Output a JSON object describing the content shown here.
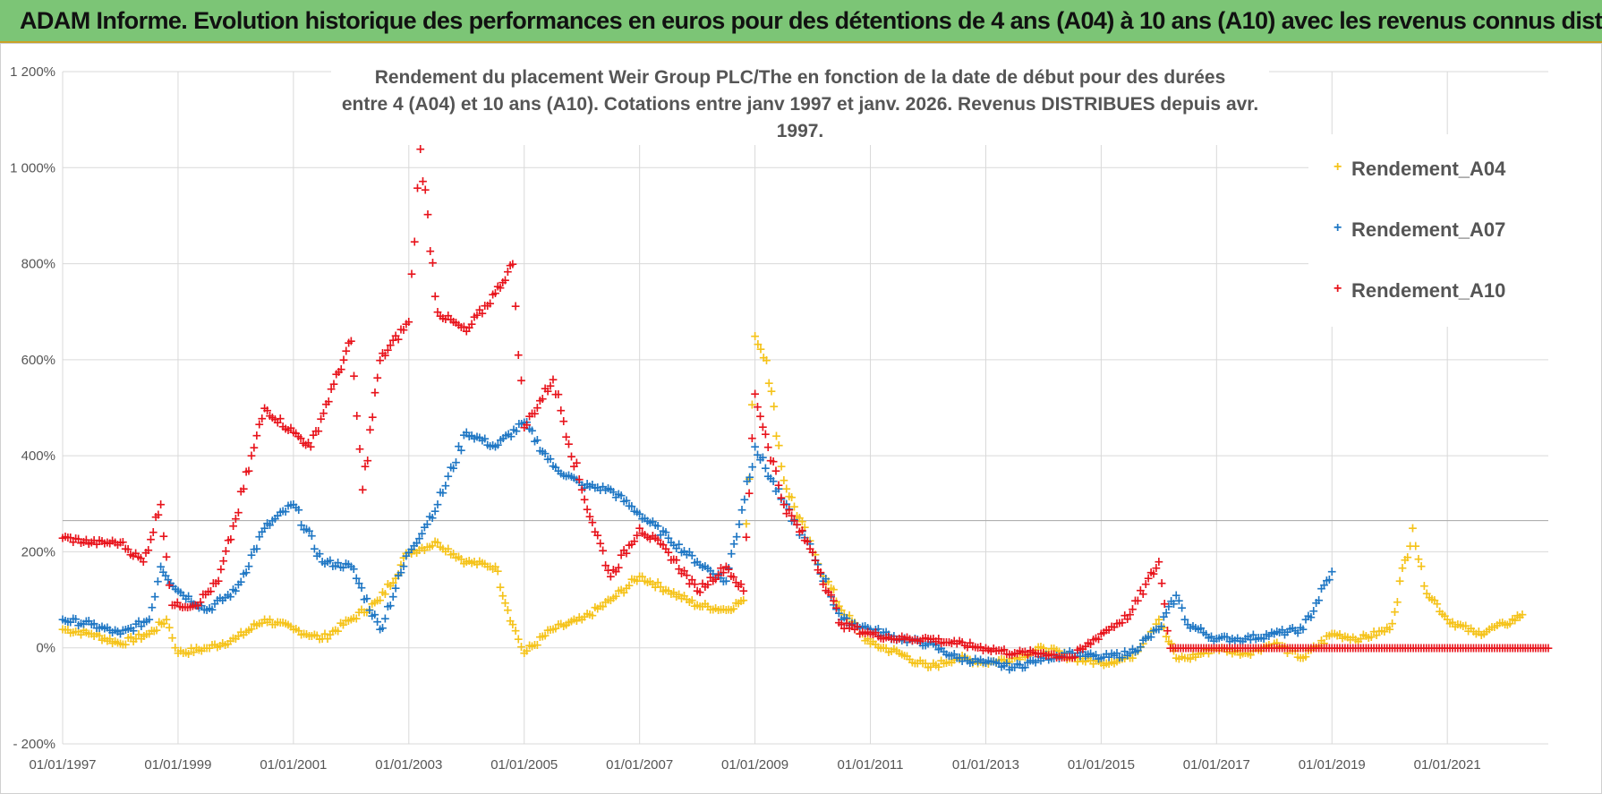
{
  "banner": {
    "text": "ADAM Informe. Evolution historique des performances en euros pour des détentions de 4 ans (A04) à 10 ans (A10) avec les revenus connus distribués"
  },
  "colors": {
    "banner_bg": "#7cc576",
    "A04": "#f5c31a",
    "A07": "#1f77c4",
    "A10": "#e8141c"
  },
  "chart_data": {
    "type": "scatter",
    "title_line1": "Rendement du placement Weir Group PLC/The en fonction de la date de début pour des durées",
    "title_line2": "entre 4 (A04) et 10 ans (A10). Cotations entre janv 1997 et janv. 2026. Revenus DISTRIBUES depuis avr. 1997.",
    "x_range": [
      1997.0,
      2022.75
    ],
    "ylim": [
      -200,
      1200
    ],
    "y_ticks": [
      {
        "value": -200,
        "label": "- 200%"
      },
      {
        "value": 0,
        "label": "0%"
      },
      {
        "value": 200,
        "label": "200%"
      },
      {
        "value": 400,
        "label": "400%"
      },
      {
        "value": 600,
        "label": "600%"
      },
      {
        "value": 800,
        "label": "800%"
      },
      {
        "value": 1000,
        "label": "1 000%"
      },
      {
        "value": 1200,
        "label": "1 200%"
      }
    ],
    "x_ticks": [
      {
        "value": 1997,
        "label": "01/01/1997"
      },
      {
        "value": 1999,
        "label": "01/01/1999"
      },
      {
        "value": 2001,
        "label": "01/01/2001"
      },
      {
        "value": 2003,
        "label": "01/01/2003"
      },
      {
        "value": 2005,
        "label": "01/01/2005"
      },
      {
        "value": 2007,
        "label": "01/01/2007"
      },
      {
        "value": 2009,
        "label": "01/01/2009"
      },
      {
        "value": 2011,
        "label": "01/01/2011"
      },
      {
        "value": 2013,
        "label": "01/01/2013"
      },
      {
        "value": 2015,
        "label": "01/01/2015"
      },
      {
        "value": 2017,
        "label": "01/01/2017"
      },
      {
        "value": 2019,
        "label": "01/01/2019"
      },
      {
        "value": 2021,
        "label": "01/01/2021"
      }
    ],
    "legend_position": "top-right",
    "series": [
      {
        "name": "Rendement_A04",
        "color": "#f5c31a",
        "x": [
          1997.0,
          1997.5,
          1998.0,
          1998.5,
          1998.8,
          1999.0,
          1999.5,
          2000.0,
          2000.5,
          2001.0,
          2001.5,
          2002.0,
          2002.5,
          2003.0,
          2003.5,
          2004.0,
          2004.5,
          2004.8,
          2005.0,
          2005.5,
          2006.0,
          2006.5,
          2007.0,
          2007.5,
          2008.0,
          2008.5,
          2008.8,
          2009.0,
          2009.2,
          2009.5,
          2010.0,
          2010.5,
          2011.0,
          2011.5,
          2012.0,
          2012.5,
          2013.0,
          2013.5,
          2014.0,
          2014.5,
          2015.0,
          2015.5,
          2016.0,
          2016.3,
          2016.5,
          2017.0,
          2017.5,
          2018.0,
          2018.5,
          2019.0,
          2019.5,
          2020.0,
          2020.4,
          2020.6,
          2021.0,
          2021.5,
          2022.0,
          2022.3
        ],
        "y": [
          40,
          30,
          10,
          30,
          60,
          -10,
          0,
          20,
          60,
          40,
          20,
          60,
          100,
          200,
          220,
          180,
          170,
          50,
          -10,
          40,
          60,
          100,
          150,
          120,
          90,
          80,
          100,
          650,
          600,
          350,
          200,
          80,
          10,
          -10,
          -40,
          -20,
          -30,
          -20,
          0,
          -20,
          -30,
          -20,
          60,
          -20,
          -20,
          0,
          -10,
          10,
          -20,
          30,
          20,
          40,
          250,
          130,
          60,
          30,
          50,
          70
        ]
      },
      {
        "name": "Rendement_A07",
        "color": "#1f77c4",
        "x": [
          1997.0,
          1997.5,
          1998.0,
          1998.5,
          1998.7,
          1999.0,
          1999.5,
          2000.0,
          2000.5,
          2001.0,
          2001.5,
          2002.0,
          2002.5,
          2003.0,
          2003.5,
          2004.0,
          2004.5,
          2005.0,
          2005.5,
          2006.0,
          2006.5,
          2007.0,
          2007.5,
          2008.0,
          2008.5,
          2009.0,
          2009.5,
          2010.0,
          2010.5,
          2011.0,
          2011.5,
          2012.0,
          2012.5,
          2013.0,
          2013.5,
          2014.0,
          2014.5,
          2015.0,
          2015.5,
          2016.0,
          2016.3,
          2016.5,
          2017.0,
          2017.5,
          2018.0,
          2018.5,
          2019.0
        ],
        "y": [
          60,
          50,
          30,
          60,
          170,
          120,
          80,
          120,
          250,
          300,
          180,
          170,
          40,
          200,
          300,
          450,
          420,
          470,
          380,
          340,
          330,
          280,
          230,
          180,
          140,
          420,
          300,
          200,
          60,
          40,
          20,
          10,
          -20,
          -30,
          -40,
          -20,
          -10,
          -20,
          -10,
          40,
          110,
          50,
          20,
          20,
          30,
          40,
          160
        ]
      },
      {
        "name": "Rendement_A10",
        "color": "#e8141c",
        "x": [
          1997.0,
          1997.5,
          1998.0,
          1998.4,
          1998.7,
          1998.9,
          1999.3,
          1999.7,
          2000.0,
          2000.5,
          2001.0,
          2001.3,
          2001.7,
          2002.0,
          2002.2,
          2002.5,
          2003.0,
          2003.2,
          2003.5,
          2004.0,
          2004.5,
          2004.8,
          2005.0,
          2005.5,
          2006.0,
          2006.5,
          2007.0,
          2007.5,
          2008.0,
          2008.5,
          2008.8,
          2009.0,
          2009.5,
          2010.0,
          2010.5,
          2011.0,
          2011.5,
          2012.0,
          2012.5,
          2013.0,
          2013.5,
          2014.0,
          2014.5,
          2015.0,
          2015.5,
          2016.0,
          2016.2,
          2017.0,
          2018.0,
          2019.0,
          2020.0,
          2021.0,
          2022.0,
          2022.75
        ],
        "y": [
          230,
          220,
          220,
          180,
          300,
          90,
          90,
          140,
          270,
          500,
          450,
          420,
          550,
          640,
          330,
          600,
          680,
          1040,
          700,
          660,
          740,
          800,
          460,
          560,
          330,
          150,
          250,
          200,
          120,
          170,
          120,
          530,
          300,
          200,
          50,
          30,
          20,
          20,
          10,
          0,
          -10,
          -10,
          -20,
          30,
          70,
          180,
          0,
          0,
          0,
          0,
          0,
          0,
          0,
          0
        ]
      }
    ]
  }
}
